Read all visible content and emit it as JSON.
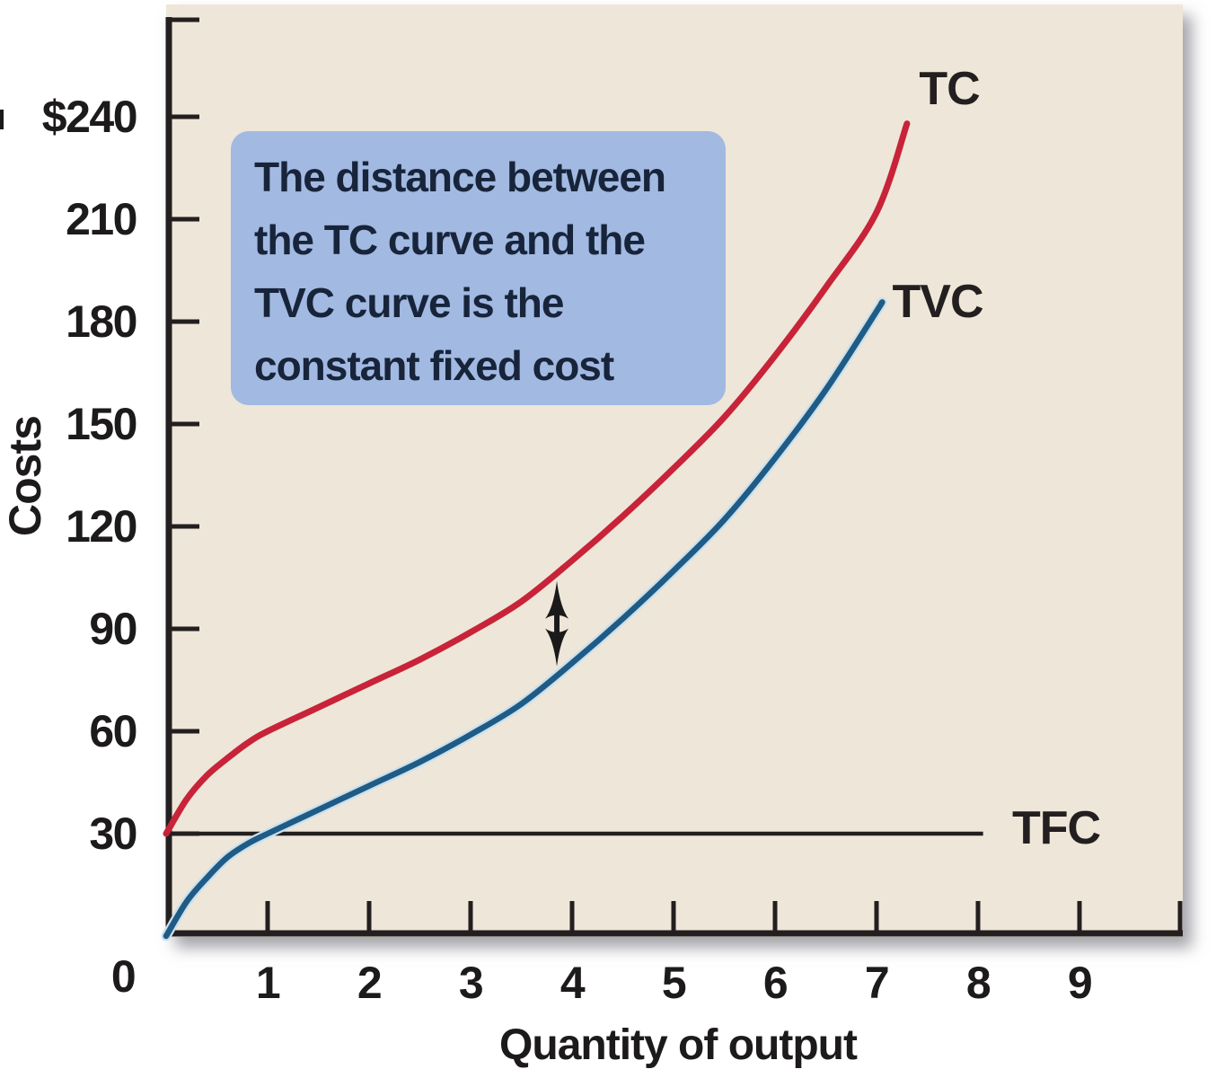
{
  "figure": {
    "y_axis_title": "Costs",
    "x_axis_title": "Quantity of output",
    "origin_label": "0",
    "annotation": {
      "lines": [
        "The distance between",
        "the TC curve and the",
        "TVC curve is the",
        "constant fixed cost"
      ],
      "bg_color": "#a2b9e2",
      "text_color": "#17243a"
    }
  },
  "chart_data": {
    "type": "line",
    "title": "",
    "xlabel": "Quantity of output",
    "ylabel": "Costs",
    "xlim": [
      0,
      10
    ],
    "ylim": [
      0,
      270
    ],
    "grid": false,
    "legend": "curve-end labels",
    "background_color": "#eee6d8",
    "axis_color": "#231f20",
    "y_ticks": [
      {
        "value": 240,
        "label": "$240"
      },
      {
        "value": 210,
        "label": "210"
      },
      {
        "value": 180,
        "label": "180"
      },
      {
        "value": 150,
        "label": "150"
      },
      {
        "value": 120,
        "label": "120"
      },
      {
        "value": 90,
        "label": "90"
      },
      {
        "value": 60,
        "label": "60"
      },
      {
        "value": 30,
        "label": "30"
      }
    ],
    "x_ticks": [
      {
        "value": 1,
        "label": "1"
      },
      {
        "value": 2,
        "label": "2"
      },
      {
        "value": 3,
        "label": "3"
      },
      {
        "value": 4,
        "label": "4"
      },
      {
        "value": 5,
        "label": "5"
      },
      {
        "value": 6,
        "label": "6"
      },
      {
        "value": 7,
        "label": "7"
      },
      {
        "value": 8,
        "label": "8"
      },
      {
        "value": 9,
        "label": "9"
      }
    ],
    "series": [
      {
        "name": "TC",
        "color": "#c82339",
        "width": 7,
        "points": [
          [
            0,
            30
          ],
          [
            0.2,
            40
          ],
          [
            0.4,
            47
          ],
          [
            0.6,
            52
          ],
          [
            0.8,
            56.5
          ],
          [
            1,
            60
          ],
          [
            1.5,
            67
          ],
          [
            2,
            74
          ],
          [
            2.5,
            81
          ],
          [
            3,
            89
          ],
          [
            3.5,
            98
          ],
          [
            4,
            110
          ],
          [
            4.5,
            123
          ],
          [
            5,
            137
          ],
          [
            5.5,
            152
          ],
          [
            6,
            170
          ],
          [
            6.5,
            190
          ],
          [
            7,
            212
          ],
          [
            7.3,
            238
          ]
        ]
      },
      {
        "name": "TVC",
        "color": "#1f5b84",
        "halo_color": "#c9e0ee",
        "width": 6.5,
        "points": [
          [
            0,
            0
          ],
          [
            0.2,
            10
          ],
          [
            0.4,
            17
          ],
          [
            0.6,
            23
          ],
          [
            0.8,
            27
          ],
          [
            1,
            30
          ],
          [
            1.5,
            37
          ],
          [
            2,
            44
          ],
          [
            2.5,
            51
          ],
          [
            3,
            59
          ],
          [
            3.5,
            68
          ],
          [
            4,
            80
          ],
          [
            4.5,
            93
          ],
          [
            5,
            107
          ],
          [
            5.5,
            122
          ],
          [
            6,
            140
          ],
          [
            6.5,
            160
          ],
          [
            7,
            183
          ],
          [
            7.05,
            185.5
          ]
        ]
      },
      {
        "name": "TFC",
        "color": "#231f20",
        "width": 4.5,
        "points": [
          [
            0.05,
            30
          ],
          [
            8.05,
            30
          ]
        ]
      }
    ],
    "distance_arrow": {
      "x": 3.85,
      "top_cost": 104,
      "bottom_cost": 79,
      "color": "#1a1a1a"
    }
  }
}
